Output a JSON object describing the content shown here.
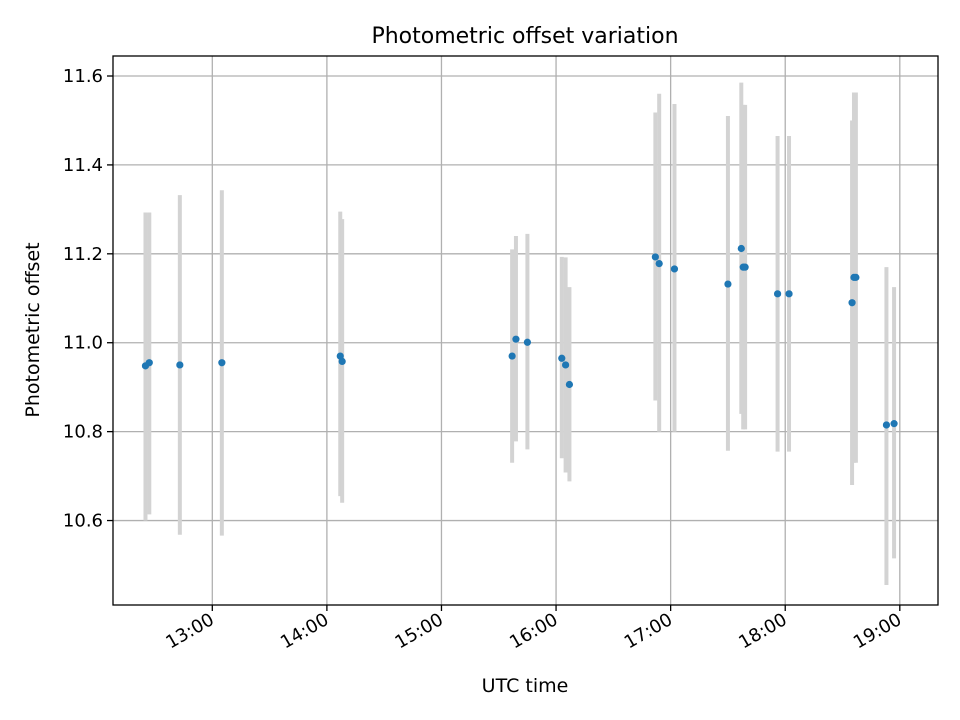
{
  "chart_data": {
    "type": "scatter",
    "title": "Photometric offset variation",
    "xlabel": "UTC time",
    "ylabel": "Photometric offset",
    "x_ticks": [
      "13:00",
      "14:00",
      "15:00",
      "16:00",
      "17:00",
      "18:00",
      "19:00"
    ],
    "y_ticks": [
      "10.6",
      "10.8",
      "11.0",
      "11.2",
      "11.4",
      "11.6"
    ],
    "xlim": [
      "12:08",
      "19:20"
    ],
    "ylim": [
      10.41,
      11.645
    ],
    "grid": true,
    "marker_color": "#1f77b4",
    "errorbar_color": "#d3d3d3",
    "points": [
      {
        "t": "12:25",
        "y": 10.948,
        "lo": 10.6,
        "hi": 11.293
      },
      {
        "t": "12:27",
        "y": 10.955,
        "lo": 10.614,
        "hi": 11.293
      },
      {
        "t": "12:43",
        "y": 10.95,
        "lo": 10.568,
        "hi": 11.332
      },
      {
        "t": "13:05",
        "y": 10.955,
        "lo": 10.566,
        "hi": 11.343
      },
      {
        "t": "14:07",
        "y": 10.97,
        "lo": 10.655,
        "hi": 11.295
      },
      {
        "t": "14:08",
        "y": 10.958,
        "lo": 10.64,
        "hi": 11.278
      },
      {
        "t": "15:37",
        "y": 10.97,
        "lo": 10.73,
        "hi": 11.21
      },
      {
        "t": "15:39",
        "y": 11.008,
        "lo": 10.778,
        "hi": 11.24
      },
      {
        "t": "15:45",
        "y": 11.001,
        "lo": 10.76,
        "hi": 11.245
      },
      {
        "t": "16:03",
        "y": 10.965,
        "lo": 10.74,
        "hi": 11.193
      },
      {
        "t": "16:05",
        "y": 10.95,
        "lo": 10.708,
        "hi": 11.192
      },
      {
        "t": "16:07",
        "y": 10.906,
        "lo": 10.688,
        "hi": 11.125
      },
      {
        "t": "16:52",
        "y": 11.193,
        "lo": 10.87,
        "hi": 11.518
      },
      {
        "t": "16:54",
        "y": 11.178,
        "lo": 10.8,
        "hi": 11.56
      },
      {
        "t": "17:02",
        "y": 11.166,
        "lo": 10.8,
        "hi": 11.537
      },
      {
        "t": "17:30",
        "y": 11.132,
        "lo": 10.757,
        "hi": 11.51
      },
      {
        "t": "17:37",
        "y": 11.212,
        "lo": 10.84,
        "hi": 11.585
      },
      {
        "t": "17:38",
        "y": 11.17,
        "lo": 10.805,
        "hi": 11.535
      },
      {
        "t": "17:39",
        "y": 11.17,
        "lo": 10.805,
        "hi": 11.535
      },
      {
        "t": "17:56",
        "y": 11.11,
        "lo": 10.755,
        "hi": 11.465
      },
      {
        "t": "18:02",
        "y": 11.11,
        "lo": 10.755,
        "hi": 11.465
      },
      {
        "t": "18:35",
        "y": 11.09,
        "lo": 10.68,
        "hi": 11.5
      },
      {
        "t": "18:36",
        "y": 11.147,
        "lo": 10.73,
        "hi": 11.563
      },
      {
        "t": "18:37",
        "y": 11.147,
        "lo": 10.73,
        "hi": 11.563
      },
      {
        "t": "18:53",
        "y": 10.815,
        "lo": 10.455,
        "hi": 11.17
      },
      {
        "t": "18:57",
        "y": 10.818,
        "lo": 10.515,
        "hi": 11.125
      }
    ]
  }
}
